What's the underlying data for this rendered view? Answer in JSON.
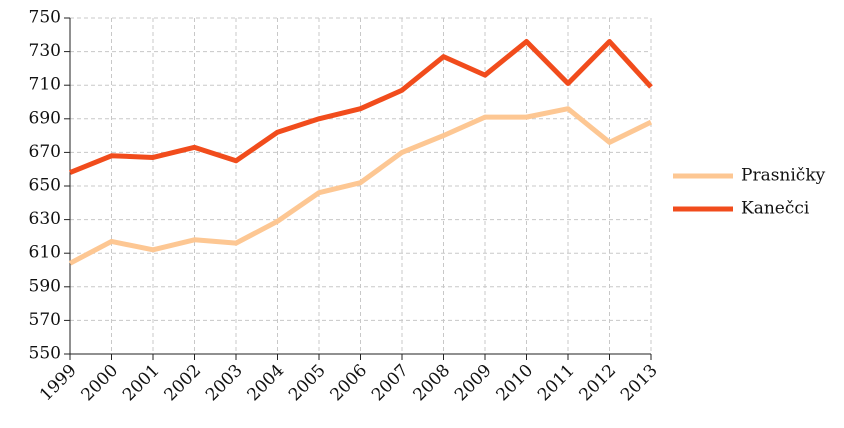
{
  "chart_data": {
    "type": "line",
    "categories": [
      "1999",
      "2000",
      "2001",
      "2002",
      "2003",
      "2004",
      "2005",
      "2006",
      "2007",
      "2008",
      "2009",
      "2010",
      "2011",
      "2012",
      "2013"
    ],
    "series": [
      {
        "name": "Prasničky",
        "color": "#fdc793",
        "values": [
          604,
          617,
          612,
          618,
          616,
          629,
          646,
          652,
          670,
          680,
          691,
          691,
          696,
          676,
          688
        ]
      },
      {
        "name": "Kanečci",
        "color": "#f14c1c",
        "values": [
          658,
          668,
          667,
          673,
          665,
          682,
          690,
          696,
          707,
          727,
          716,
          736,
          711,
          736,
          709
        ]
      }
    ],
    "ylim": [
      550,
      750
    ],
    "yticks": [
      550,
      570,
      590,
      610,
      630,
      650,
      670,
      690,
      710,
      730,
      750
    ],
    "grid": true,
    "legend": "right"
  }
}
